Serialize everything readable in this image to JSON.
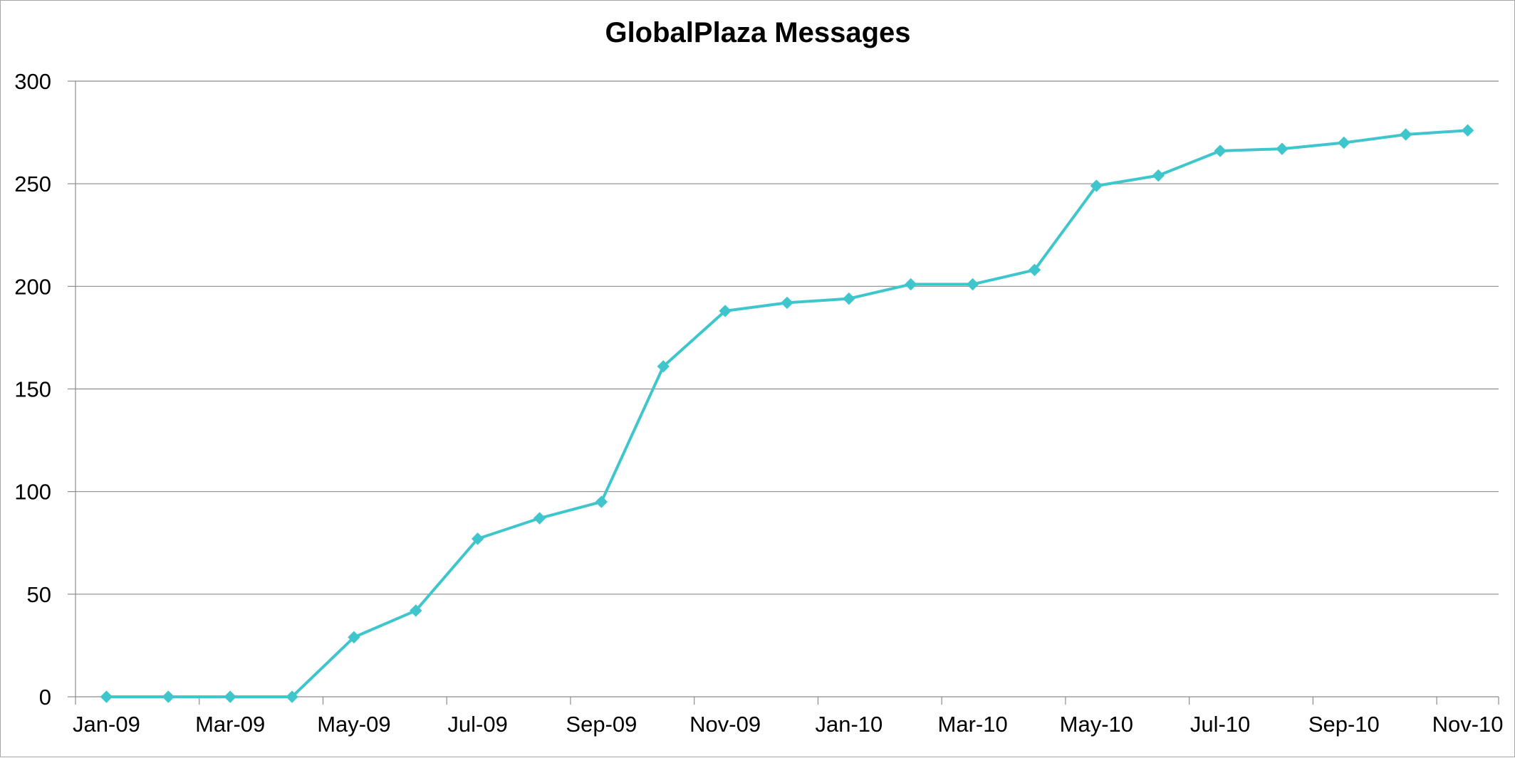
{
  "chart_data": {
    "type": "line",
    "title": "GlobalPlaza Messages",
    "xlabel": "",
    "ylabel": "",
    "ylim": [
      0,
      300
    ],
    "yticks": [
      0,
      50,
      100,
      150,
      200,
      250,
      300
    ],
    "x_tick_labels": [
      "Jan-09",
      "Mar-09",
      "May-09",
      "Jul-09",
      "Sep-09",
      "Nov-09",
      "Jan-10",
      "Mar-10",
      "May-10",
      "Jul-10",
      "Sep-10",
      "Nov-10"
    ],
    "grid": true,
    "legend": "none",
    "series": [
      {
        "color": "#3ec6cc",
        "marker": "diamond",
        "x": [
          "2009-01-01",
          "2009-02-01",
          "2009-03-01",
          "2009-04-01",
          "2009-05-01",
          "2009-06-01",
          "2009-07-01",
          "2009-08-01",
          "2009-09-01",
          "2009-10-01",
          "2009-11-01",
          "2009-12-01",
          "2010-01-01",
          "2010-02-01",
          "2010-03-01",
          "2010-04-01",
          "2010-05-01",
          "2010-06-01",
          "2010-07-01",
          "2010-08-01",
          "2010-09-01",
          "2010-10-01",
          "2010-11-01"
        ],
        "values": [
          0,
          0,
          0,
          0,
          29,
          42,
          77,
          87,
          95,
          161,
          188,
          192,
          194,
          201,
          201,
          208,
          249,
          254,
          266,
          267,
          270,
          274,
          276
        ]
      }
    ]
  }
}
